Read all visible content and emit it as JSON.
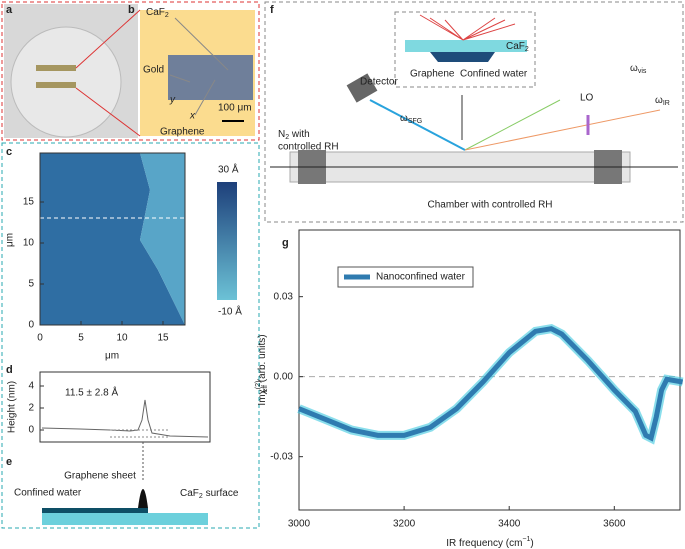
{
  "panels": {
    "letters": [
      "a",
      "b",
      "c",
      "d",
      "e",
      "f",
      "g"
    ],
    "b": {
      "caf2": {
        "main": "CaF",
        "sub": "2"
      },
      "gold": "Gold",
      "graphene": "Graphene",
      "scale": "100 μm",
      "y": "y",
      "x": "x"
    },
    "c": {
      "xticks": [
        "0",
        "5",
        "10",
        "15"
      ],
      "yticks": [
        "0",
        "5",
        "10",
        "15"
      ],
      "xlabel": "μm",
      "ylabel": "μm",
      "cbar_max": "30 Å",
      "cbar_min": "-10 Å"
    },
    "d": {
      "ylabel": "Height (nm)",
      "yticks": [
        "0",
        "2",
        "4"
      ],
      "annotation": "11.5 ± 2.8 Å"
    },
    "e": {
      "sheet": "Graphene sheet",
      "water": "Confined water",
      "surface": {
        "main": "CaF",
        "sub": "2",
        "rest": " surface"
      }
    },
    "f": {
      "detector": "Detector",
      "sfg": {
        "main": "ω",
        "sub": "SFG"
      },
      "vis": {
        "main": "ω",
        "sub": "vis"
      },
      "ir": {
        "main": "ω",
        "sub": "IR"
      },
      "lo": "LO",
      "n2": {
        "main": "N",
        "sub": "2",
        "rest": " with"
      },
      "n2b": "controlled RH",
      "chamber": "Chamber with controlled RH",
      "caf2": {
        "main": "CaF",
        "sub": "2"
      },
      "graphene": "Graphene",
      "water": "Confined water"
    }
  },
  "chart_data": {
    "type": "line",
    "xlabel": {
      "main": "IR frequency (cm",
      "sup": "−1",
      "rest": ")"
    },
    "ylabel": {
      "main": "Imχ",
      "sup": "(2)",
      "sub": "eff",
      "rest": " (arb. units)"
    },
    "x": [
      3000,
      3050,
      3100,
      3150,
      3200,
      3250,
      3300,
      3350,
      3400,
      3450,
      3480,
      3500,
      3550,
      3600,
      3640,
      3660,
      3670,
      3680,
      3690,
      3700,
      3730
    ],
    "series": [
      {
        "name": "Nanoconfined water",
        "color": "#2f7bb0",
        "values": [
          -0.012,
          -0.016,
          -0.02,
          -0.022,
          -0.022,
          -0.019,
          -0.012,
          -0.002,
          0.009,
          0.017,
          0.018,
          0.016,
          0.006,
          -0.005,
          -0.013,
          -0.022,
          -0.023,
          -0.015,
          -0.005,
          -0.001,
          -0.002
        ]
      }
    ],
    "xlim": [
      3000,
      3725
    ],
    "ylim": [
      -0.05,
      0.055
    ],
    "xticks": [
      3000,
      3200,
      3400,
      3600
    ],
    "yticks": [
      0.03,
      {
        "value": 0,
        "label": "0.00"
      },
      -0.03
    ]
  }
}
